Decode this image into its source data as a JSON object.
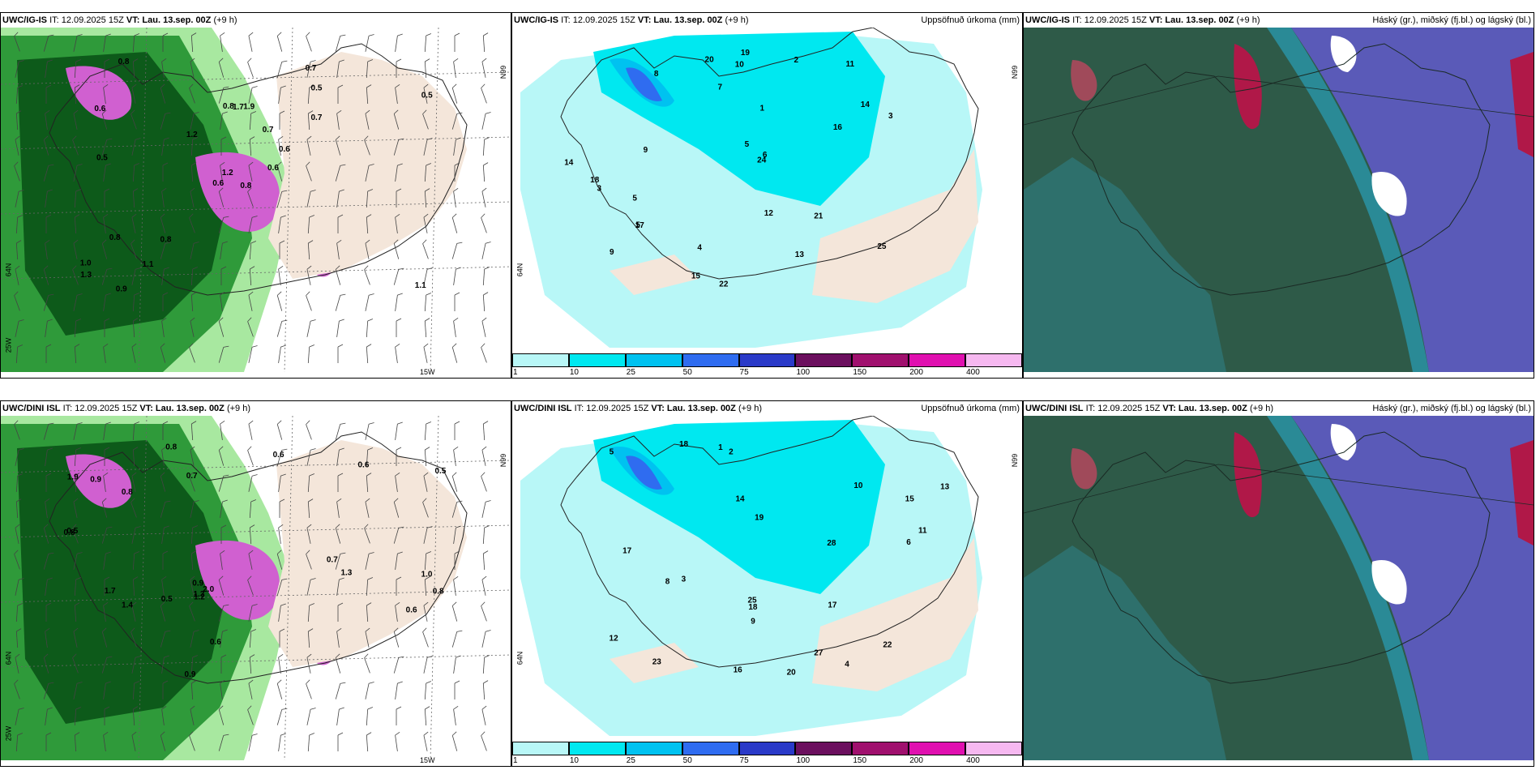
{
  "panels": [
    {
      "model": "UWC/IG-IS",
      "it": "IT: 12.09.2025 15Z",
      "vt": "VT: Lau. 13.sep. 00Z",
      "lead": "(+9 h)",
      "title_right": "",
      "kind": "wind",
      "axis": {
        "lat_top": "66N",
        "lat_bottom": "64N",
        "lon_left": "25W",
        "lon_bottom": "15W"
      },
      "labels": [
        "0.8",
        "0.6",
        "1.2",
        "1.0",
        "0.6",
        "0.8",
        "0.7",
        "1.9",
        "0.5",
        "0.6",
        "0.8",
        "1.1",
        "0.5",
        "0.5",
        "0.6",
        "0.7",
        "0.9",
        "0.8",
        "0.7",
        "0.8",
        "1.2",
        "1.3",
        "1.1",
        "1.7"
      ]
    },
    {
      "model": "UWC/IG-IS",
      "it": "IT: 12.09.2025 15Z",
      "vt": "VT: Lau. 13.sep. 00Z",
      "lead": "(+9 h)",
      "title_right": "Uppsöfnuð úrkoma (mm)",
      "kind": "precip",
      "axis": {
        "lat_top": "66N",
        "lat_bottom": "64N"
      },
      "labels": [
        "9",
        "11",
        "8",
        "14",
        "12",
        "9",
        "5",
        "5",
        "3",
        "16",
        "18",
        "19",
        "21",
        "24",
        "22",
        "20",
        "25",
        "14",
        "17",
        "15",
        "13",
        "10",
        "7",
        "6",
        "5",
        "4",
        "3",
        "2",
        "1"
      ]
    },
    {
      "model": "UWC/IG-IS",
      "it": "IT: 12.09.2025 15Z",
      "vt": "VT: Lau. 13.sep. 00Z",
      "lead": "(+9 h)",
      "title_right": "Háský (gr.), miðský (fj.bl.) og lágský (bl.)",
      "kind": "cloud"
    },
    {
      "model": "UWC/DINI ISL",
      "it": "IT: 12.09.2025 15Z",
      "vt": "VT: Lau. 13.sep. 00Z",
      "lead": "(+9 h)",
      "title_right": "",
      "kind": "wind",
      "axis": {
        "lat_top": "66N",
        "lat_bottom": "64N",
        "lon_left": "25W",
        "lon_bottom": "15W"
      },
      "labels": [
        "1.9",
        "1.7",
        "0.9",
        "0.7",
        "0.6",
        "0.5",
        "0.8",
        "0.6",
        "1.0",
        "0.7",
        "0.9",
        "0.6",
        "0.5",
        "0.8",
        "1.3",
        "0.5",
        "0.9",
        "0.8",
        "0.6",
        "0.8",
        "2.0",
        "1.4",
        "1.2",
        "1.3"
      ]
    },
    {
      "model": "UWC/DINI ISL",
      "it": "IT: 12.09.2025 15Z",
      "vt": "VT: Lau. 13.sep. 00Z",
      "lead": "(+9 h)",
      "title_right": "Uppsöfnuð úrkoma (mm)",
      "kind": "precip",
      "axis": {
        "lat_top": "66N",
        "lat_bottom": "64N"
      },
      "labels": [
        "17",
        "18",
        "19",
        "10",
        "9",
        "13",
        "14",
        "15",
        "16",
        "20",
        "22",
        "23",
        "25",
        "27",
        "28",
        "18",
        "17",
        "12",
        "11",
        "8",
        "6",
        "5",
        "4",
        "3",
        "2",
        "1"
      ]
    },
    {
      "model": "UWC/DINI ISL",
      "it": "IT: 12.09.2025 15Z",
      "vt": "VT: Lau. 13.sep. 00Z",
      "lead": "(+9 h)",
      "title_right": "Háský (gr.), miðský (fj.bl.) og lágský (bl.)",
      "kind": "cloud"
    }
  ],
  "precip_colorbar": {
    "ticks": [
      "1",
      "10",
      "25",
      "50",
      "75",
      "100",
      "150",
      "200",
      "400"
    ],
    "colors": [
      "#b8f7f7",
      "#00e8f0",
      "#00c2f0",
      "#2f6cf0",
      "#2a3ac8",
      "#6b0f5e",
      "#a0106e",
      "#e010b0",
      "#f6b8f0"
    ]
  },
  "colors": {
    "land": "#f4e6da",
    "precip_light": "#b8f7f7",
    "wind_dark_green": "#0d5a1a",
    "wind_mid_green": "#2f9a3a",
    "wind_light_green": "#a8e8a0",
    "magenta": "#d060d0",
    "cloud_high": "#2e5a48",
    "cloud_mid": "#5a5ab8",
    "cloud_red": "#b01848"
  }
}
